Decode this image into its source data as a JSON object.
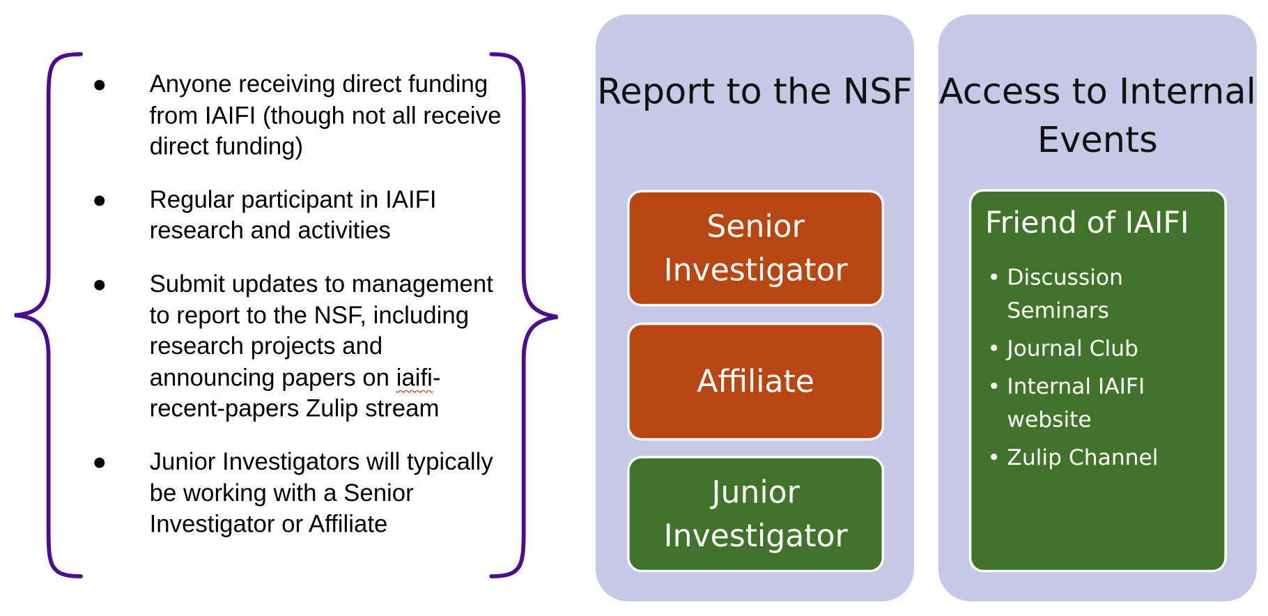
{
  "bullets": [
    "Anyone receiving direct funding from IAIFI (though not all receive direct funding)",
    "Regular participant in IAIFI research and activities",
    {
      "before": "Submit updates to management to report to the NSF, including research projects and announcing papers on ",
      "underlined": "iaifi",
      "after": "-recent-papers Zulip stream"
    },
    "Junior Investigators will typically be working with a Senior Investigator or Affiliate"
  ],
  "report_panel": {
    "title": "Report to the NSF",
    "boxes": [
      {
        "label": "Senior Investigator",
        "color": "#b84613"
      },
      {
        "label": "Affiliate",
        "color": "#b84613"
      },
      {
        "label": "Junior Investigator",
        "color": "#42732a"
      }
    ]
  },
  "access_panel": {
    "title": "Access to Internal Events",
    "box": {
      "title": "Friend of IAIFI",
      "color": "#42732a",
      "items": [
        "Discussion Seminars",
        "Journal Club",
        "Internal IAIFI website",
        "Zulip Channel"
      ]
    }
  },
  "colors": {
    "panel_bg": "#c5c9e5",
    "brace": "#4b0f8c",
    "orange": "#b84613",
    "green": "#42732a"
  }
}
